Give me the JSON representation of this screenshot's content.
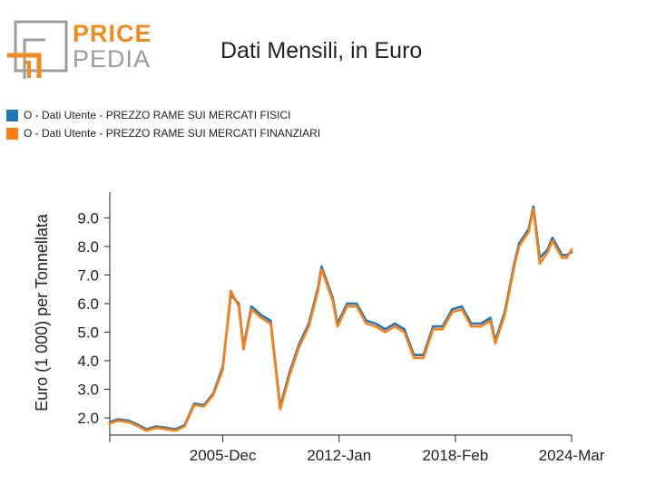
{
  "logo": {
    "word1": "PRICE",
    "word2": "PEDIA",
    "icon": "pricepedia-logo-icon",
    "colors": {
      "orange": "#f28a1c",
      "gray": "#9c9c9c"
    }
  },
  "chart_data": {
    "type": "line",
    "title": "Dati Mensili, in Euro",
    "xlabel": "",
    "ylabel": "Euro (1 000) per Tonnellata",
    "x_ticks": [
      "2005-Dec",
      "2012-Jan",
      "2018-Feb",
      "2024-Mar"
    ],
    "y_ticks": [
      "2.0",
      "3.0",
      "4.0",
      "5.0",
      "6.0",
      "7.0",
      "8.0",
      "9.0"
    ],
    "ylim": [
      1.4,
      9.9
    ],
    "xlim": [
      "2000-Jan",
      "2024-Mar"
    ],
    "grid": false,
    "legend_position": "top-left",
    "series": [
      {
        "name": "O - Dati Utente - PREZZO RAME SUI MERCATI FISICI",
        "color": "#1f77b4",
        "points": [
          [
            "2000-Jan",
            1.85
          ],
          [
            "2000-Jun",
            1.95
          ],
          [
            "2001-Jan",
            1.9
          ],
          [
            "2001-Jul",
            1.75
          ],
          [
            "2001-Dec",
            1.6
          ],
          [
            "2002-Jun",
            1.7
          ],
          [
            "2003-Jan",
            1.65
          ],
          [
            "2003-Jun",
            1.6
          ],
          [
            "2003-Dec",
            1.75
          ],
          [
            "2004-Jun",
            2.5
          ],
          [
            "2004-Dec",
            2.45
          ],
          [
            "2005-Jun",
            2.85
          ],
          [
            "2005-Dec",
            3.8
          ],
          [
            "2006-May",
            6.3
          ],
          [
            "2006-Oct",
            6.0
          ],
          [
            "2007-Jan",
            4.5
          ],
          [
            "2007-Jun",
            5.9
          ],
          [
            "2007-Dec",
            5.6
          ],
          [
            "2008-Jun",
            5.4
          ],
          [
            "2008-Dec",
            2.4
          ],
          [
            "2009-Jun",
            3.6
          ],
          [
            "2009-Dec",
            4.6
          ],
          [
            "2010-Jun",
            5.3
          ],
          [
            "2010-Dec",
            6.6
          ],
          [
            "2011-Feb",
            7.3
          ],
          [
            "2011-Sep",
            6.2
          ],
          [
            "2011-Dec",
            5.3
          ],
          [
            "2012-Jun",
            6.0
          ],
          [
            "2012-Dec",
            6.0
          ],
          [
            "2013-Jun",
            5.4
          ],
          [
            "2013-Dec",
            5.3
          ],
          [
            "2014-Jun",
            5.1
          ],
          [
            "2014-Dec",
            5.3
          ],
          [
            "2015-Jun",
            5.1
          ],
          [
            "2015-Dec",
            4.2
          ],
          [
            "2016-Jun",
            4.2
          ],
          [
            "2016-Dec",
            5.2
          ],
          [
            "2017-Jun",
            5.2
          ],
          [
            "2017-Dec",
            5.8
          ],
          [
            "2018-Jun",
            5.9
          ],
          [
            "2018-Dec",
            5.3
          ],
          [
            "2019-Jun",
            5.3
          ],
          [
            "2019-Dec",
            5.5
          ],
          [
            "2020-Mar",
            4.7
          ],
          [
            "2020-Sep",
            5.7
          ],
          [
            "2021-Mar",
            7.4
          ],
          [
            "2021-Jun",
            8.1
          ],
          [
            "2021-Dec",
            8.6
          ],
          [
            "2022-Mar",
            9.4
          ],
          [
            "2022-Jul",
            7.6
          ],
          [
            "2022-Dec",
            7.9
          ],
          [
            "2023-Mar",
            8.3
          ],
          [
            "2023-Sep",
            7.7
          ],
          [
            "2023-Dec",
            7.7
          ],
          [
            "2024-Mar",
            7.8
          ]
        ]
      },
      {
        "name": "O - Dati Utente - PREZZO RAME SUI MERCATI FINANZIARI",
        "color": "#ff7f0e",
        "points": [
          [
            "2000-Jan",
            1.8
          ],
          [
            "2000-Jun",
            1.9
          ],
          [
            "2001-Jan",
            1.85
          ],
          [
            "2001-Jul",
            1.7
          ],
          [
            "2001-Dec",
            1.55
          ],
          [
            "2002-Jun",
            1.65
          ],
          [
            "2003-Jan",
            1.6
          ],
          [
            "2003-Jun",
            1.55
          ],
          [
            "2003-Dec",
            1.7
          ],
          [
            "2004-Jun",
            2.45
          ],
          [
            "2004-Dec",
            2.4
          ],
          [
            "2005-Jun",
            2.8
          ],
          [
            "2005-Dec",
            3.7
          ],
          [
            "2006-May",
            6.45
          ],
          [
            "2006-Oct",
            5.9
          ],
          [
            "2007-Jan",
            4.4
          ],
          [
            "2007-Jun",
            5.8
          ],
          [
            "2007-Dec",
            5.5
          ],
          [
            "2008-Jun",
            5.3
          ],
          [
            "2008-Dec",
            2.3
          ],
          [
            "2009-Jun",
            3.5
          ],
          [
            "2009-Dec",
            4.5
          ],
          [
            "2010-Jun",
            5.2
          ],
          [
            "2010-Dec",
            6.5
          ],
          [
            "2011-Feb",
            7.2
          ],
          [
            "2011-Sep",
            6.1
          ],
          [
            "2011-Dec",
            5.2
          ],
          [
            "2012-Jun",
            5.9
          ],
          [
            "2012-Dec",
            5.9
          ],
          [
            "2013-Jun",
            5.3
          ],
          [
            "2013-Dec",
            5.2
          ],
          [
            "2014-Jun",
            5.0
          ],
          [
            "2014-Dec",
            5.2
          ],
          [
            "2015-Jun",
            5.0
          ],
          [
            "2015-Dec",
            4.1
          ],
          [
            "2016-Jun",
            4.1
          ],
          [
            "2016-Dec",
            5.1
          ],
          [
            "2017-Jun",
            5.1
          ],
          [
            "2017-Dec",
            5.7
          ],
          [
            "2018-Jun",
            5.8
          ],
          [
            "2018-Dec",
            5.2
          ],
          [
            "2019-Jun",
            5.2
          ],
          [
            "2019-Dec",
            5.4
          ],
          [
            "2020-Mar",
            4.6
          ],
          [
            "2020-Sep",
            5.6
          ],
          [
            "2021-Mar",
            7.3
          ],
          [
            "2021-Jun",
            8.0
          ],
          [
            "2021-Dec",
            8.5
          ],
          [
            "2022-Mar",
            9.3
          ],
          [
            "2022-Jul",
            7.4
          ],
          [
            "2022-Dec",
            7.8
          ],
          [
            "2023-Mar",
            8.2
          ],
          [
            "2023-Sep",
            7.6
          ],
          [
            "2023-Dec",
            7.6
          ],
          [
            "2024-Mar",
            7.9
          ]
        ]
      }
    ]
  }
}
